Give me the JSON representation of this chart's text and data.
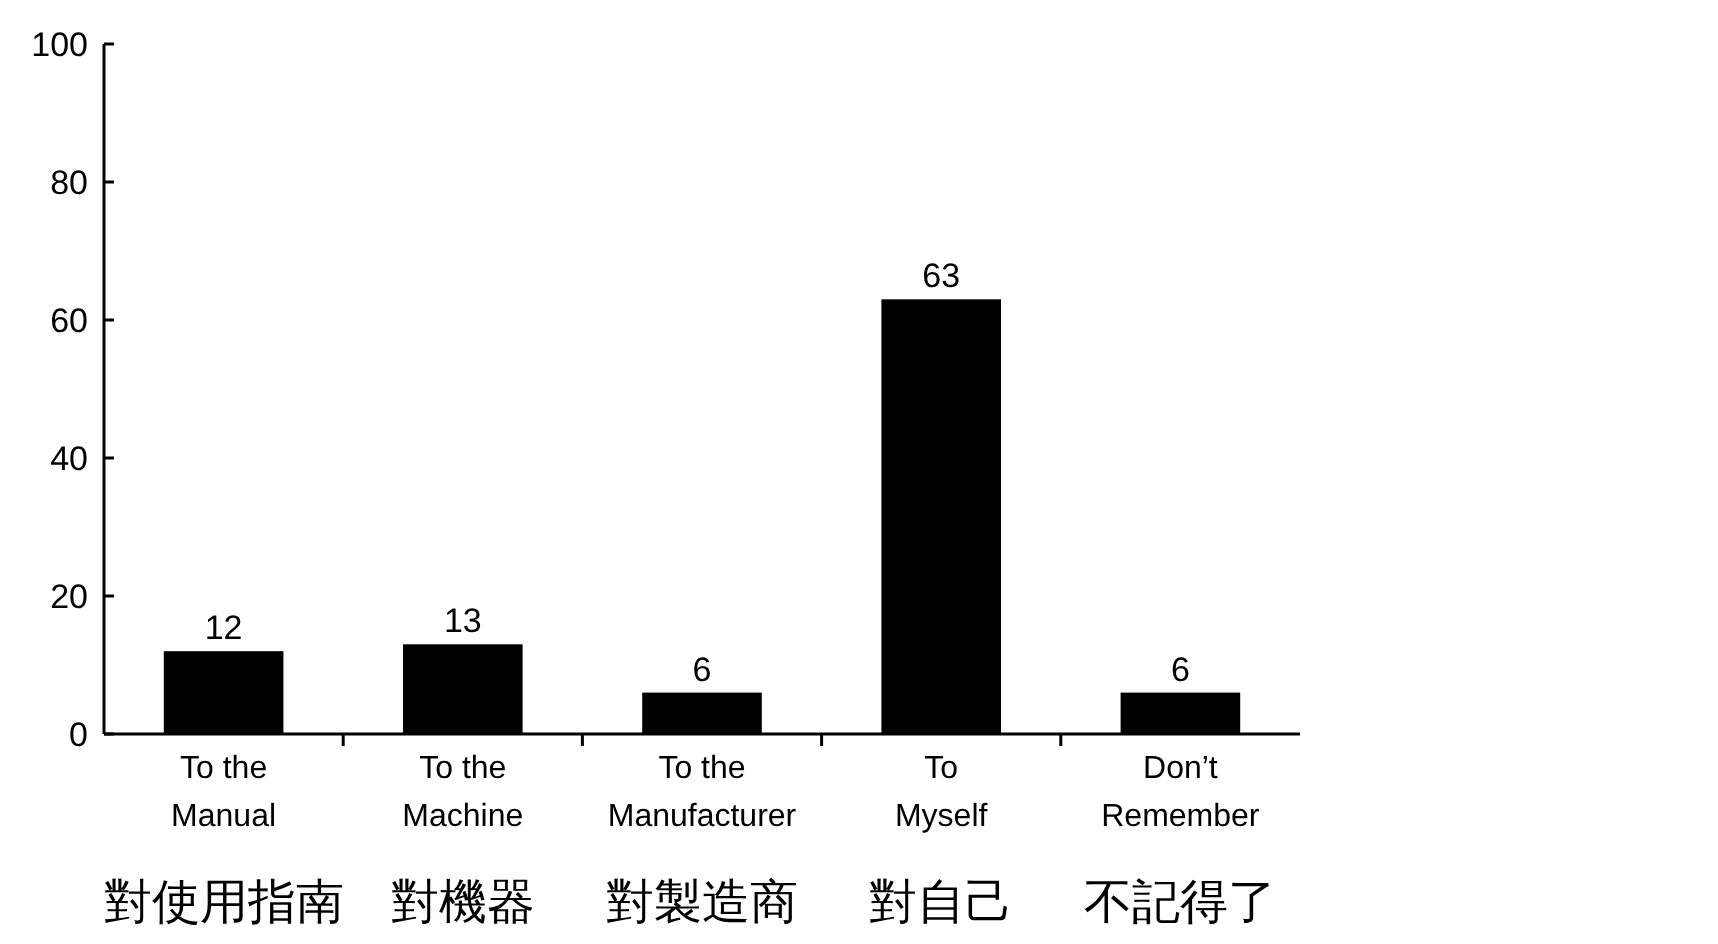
{
  "chart_data": {
    "type": "bar",
    "categories": [
      "To the\nManual",
      "To the\nMachine",
      "To the\nManufacturer",
      "To\nMyself",
      "Don’t\nRemember"
    ],
    "values": [
      12,
      13,
      6,
      63,
      6
    ],
    "color": "#000000",
    "data_labels": true,
    "ylim": [
      0,
      100
    ],
    "yticks": [
      0,
      20,
      40,
      60,
      80,
      100
    ],
    "grid": false,
    "annotations": [
      "對使用指南",
      "對機器",
      "對製造商",
      "對自己",
      "不記得了"
    ]
  }
}
